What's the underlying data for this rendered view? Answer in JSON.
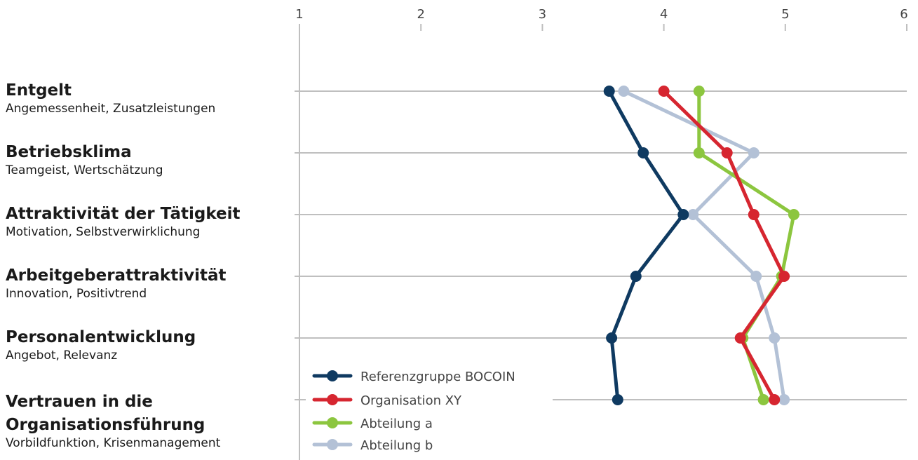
{
  "chart_data": {
    "type": "line",
    "orientation": "horizontal",
    "xlim": [
      1,
      6
    ],
    "x_ticks": [
      "1",
      "2",
      "3",
      "4",
      "5",
      "6"
    ],
    "x_tick_position": "top",
    "grid": true,
    "legend_position": "bottom-left",
    "categories": [
      {
        "title": "Entgelt",
        "subtitle": "Angemessenheit, Zusatzleistungen"
      },
      {
        "title": "Betriebsklima",
        "subtitle": "Teamgeist, Wertschätzung"
      },
      {
        "title": "Attraktivität der Tätigkeit",
        "subtitle": "Motivation, Selbstverwirklichung"
      },
      {
        "title": "Arbeitgeberattraktivität",
        "subtitle": "Innovation, Positivtrend"
      },
      {
        "title": "Personalentwicklung",
        "subtitle": "Angebot, Relevanz"
      },
      {
        "title": "Vertrauen in die Organisationsführung",
        "subtitle": "Vorbildfunktion, Krisenmanagement"
      }
    ],
    "series": [
      {
        "name": "Referenzgruppe BOCOIN",
        "color": "#0f3a61",
        "values": [
          3.55,
          3.83,
          4.16,
          3.77,
          3.57,
          3.62
        ]
      },
      {
        "name": "Organisation XY",
        "color": "#d62630",
        "values": [
          4.0,
          4.52,
          4.74,
          4.99,
          4.63,
          4.91
        ]
      },
      {
        "name": "Abteilung a",
        "color": "#8cc63f",
        "values": [
          4.29,
          4.29,
          5.07,
          4.97,
          4.65,
          4.82
        ]
      },
      {
        "name": "Abteilung b",
        "color": "#b3c1d6",
        "values": [
          3.67,
          4.74,
          4.24,
          4.76,
          4.91,
          4.99
        ]
      }
    ]
  }
}
